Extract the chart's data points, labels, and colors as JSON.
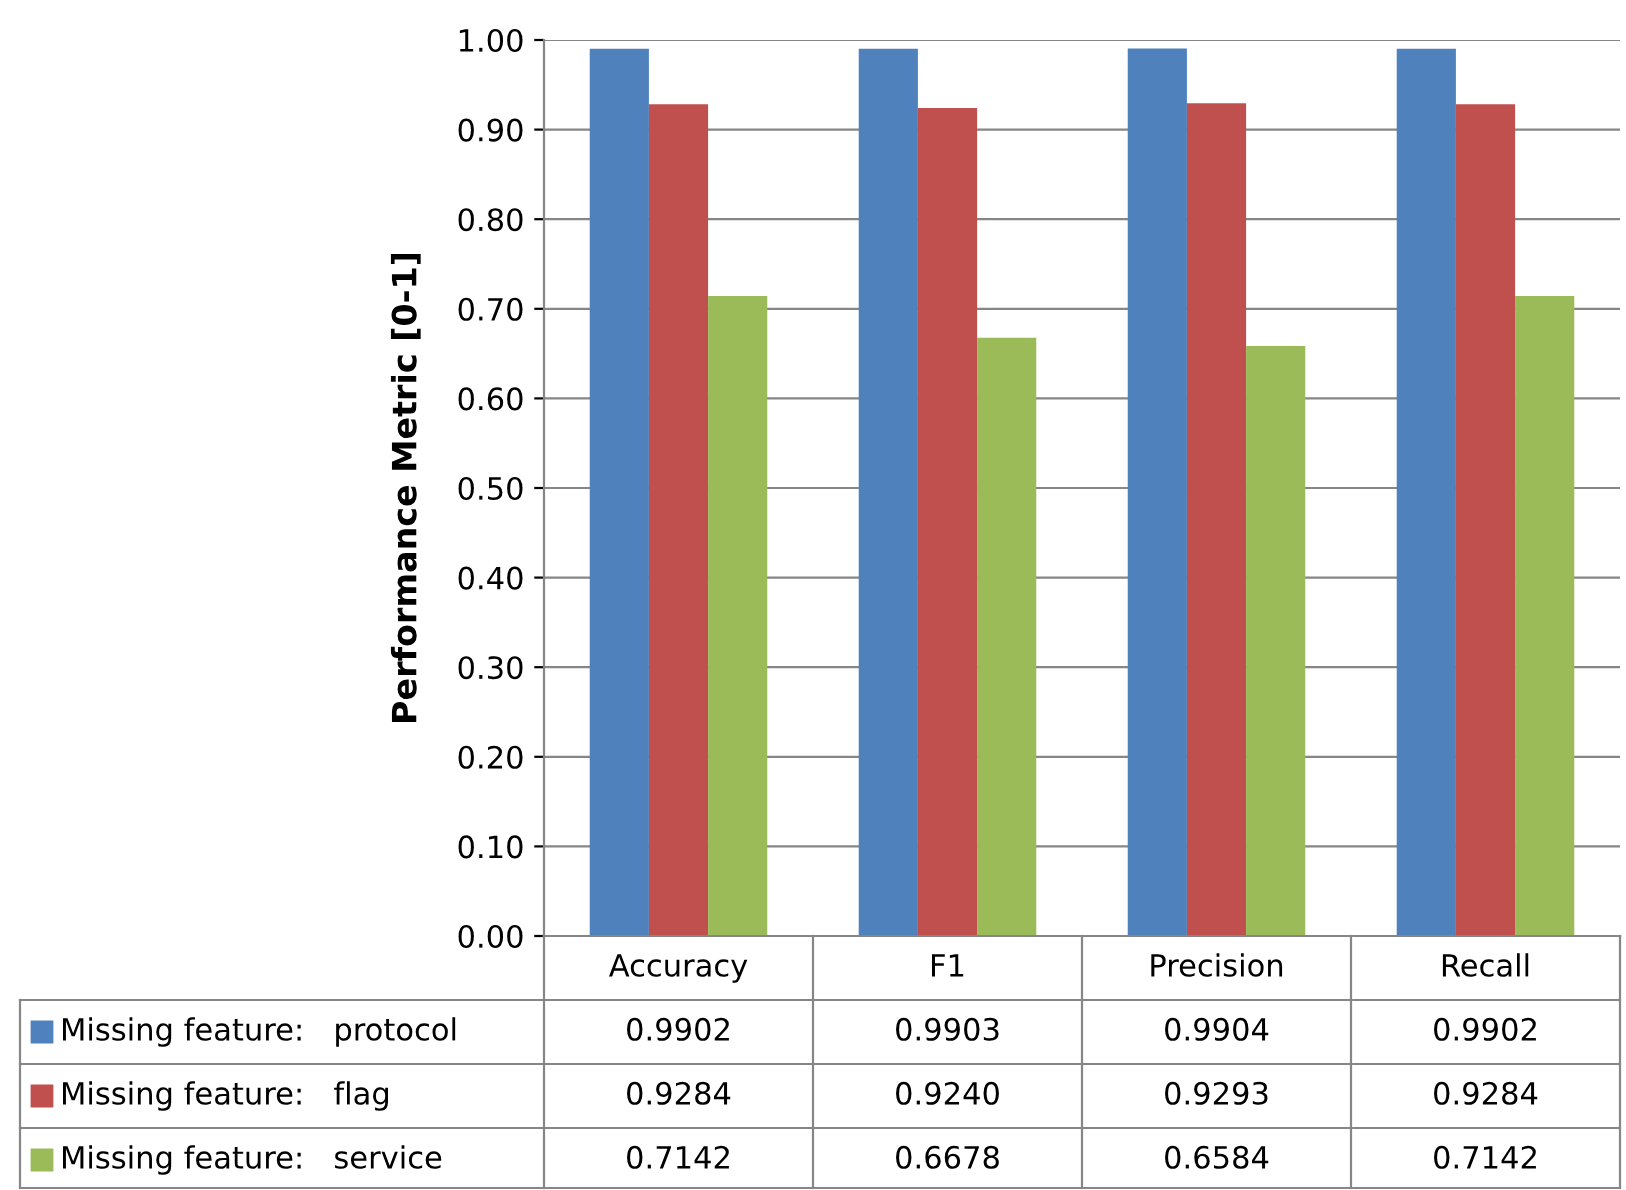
{
  "chart_data": {
    "type": "bar",
    "ylabel": "Performance Metric [0-1]",
    "categories": [
      "Accuracy",
      "F1",
      "Precision",
      "Recall"
    ],
    "series": [
      {
        "name": "Missing feature:   protocol",
        "color": "#4f81bd",
        "values": [
          0.9902,
          0.9903,
          0.9904,
          0.9902
        ],
        "value_labels": [
          "0.9902",
          "0.9903",
          "0.9904",
          "0.9902"
        ]
      },
      {
        "name": "Missing feature:   flag",
        "color": "#c0504d",
        "values": [
          0.9284,
          0.924,
          0.9293,
          0.9284
        ],
        "value_labels": [
          "0.9284",
          "0.9240",
          "0.9293",
          "0.9284"
        ]
      },
      {
        "name": "Missing feature:   service",
        "color": "#9bbb59",
        "values": [
          0.7142,
          0.6678,
          0.6584,
          0.7142
        ],
        "value_labels": [
          "0.7142",
          "0.6678",
          "0.6584",
          "0.7142"
        ]
      }
    ],
    "ylim": [
      0,
      1
    ],
    "yticks": [
      {
        "value": 0,
        "label": "0.00"
      },
      {
        "value": 0.1,
        "label": "0.10"
      },
      {
        "value": 0.2,
        "label": "0.20"
      },
      {
        "value": 0.3,
        "label": "0.30"
      },
      {
        "value": 0.4,
        "label": "0.40"
      },
      {
        "value": 0.5,
        "label": "0.50"
      },
      {
        "value": 0.6,
        "label": "0.60"
      },
      {
        "value": 0.7,
        "label": "0.70"
      },
      {
        "value": 0.8,
        "label": "0.80"
      },
      {
        "value": 0.9,
        "label": "0.90"
      },
      {
        "value": 1,
        "label": "1.00"
      }
    ],
    "grid": "y",
    "legend": "bottom left"
  }
}
